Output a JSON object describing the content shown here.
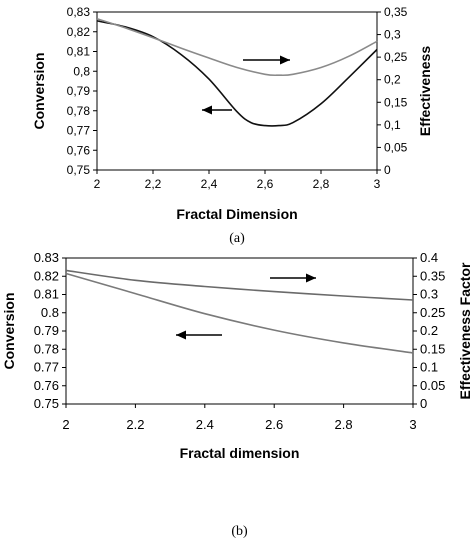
{
  "chart_data": [
    {
      "type": "line",
      "panel_label": "(a)",
      "xlabel": "Fractal Dimension",
      "ylabel": "Conversion",
      "y2label": "Effectiveness",
      "xlim": [
        2,
        3
      ],
      "ylim": [
        0.75,
        0.83
      ],
      "y2lim": [
        0,
        0.35
      ],
      "xticks": [
        "2",
        "2,2",
        "2,4",
        "2,6",
        "2,8",
        "3"
      ],
      "yticks": [
        "0,75",
        "0,76",
        "0,77",
        "0,78",
        "0,79",
        "0,8",
        "0,81",
        "0,82",
        "0,83"
      ],
      "y2ticks": [
        "0",
        "0,05",
        "0,1",
        "0,15",
        "0,2",
        "0,25",
        "0,3",
        "0,35"
      ],
      "series": [
        {
          "axis": "left",
          "color": "#111111",
          "x": [
            2.0,
            2.1,
            2.2,
            2.3,
            2.4,
            2.5,
            2.55,
            2.6,
            2.65,
            2.7,
            2.8,
            2.9,
            3.0
          ],
          "y": [
            0.8255,
            0.8225,
            0.8175,
            0.8085,
            0.796,
            0.7795,
            0.774,
            0.7725,
            0.7725,
            0.774,
            0.7835,
            0.797,
            0.811
          ]
        },
        {
          "axis": "right",
          "color": "#8a8a8a",
          "x": [
            2.0,
            2.1,
            2.2,
            2.3,
            2.4,
            2.5,
            2.6,
            2.65,
            2.7,
            2.8,
            2.9,
            3.0
          ],
          "y": [
            0.335,
            0.315,
            0.293,
            0.27,
            0.248,
            0.227,
            0.212,
            0.21,
            0.212,
            0.227,
            0.252,
            0.285
          ]
        }
      ],
      "arrows": [
        {
          "direction": "right",
          "series_axis": "right"
        },
        {
          "direction": "left",
          "series_axis": "left"
        }
      ]
    },
    {
      "type": "line",
      "panel_label": "(b)",
      "xlabel": "Fractal dimension",
      "ylabel": "Conversion",
      "y2label": "Effectiveness Factor",
      "xlim": [
        2,
        3
      ],
      "ylim": [
        0.75,
        0.83
      ],
      "y2lim": [
        0,
        0.4
      ],
      "xticks": [
        "2",
        "2.2",
        "2.4",
        "2.6",
        "2.8",
        "3"
      ],
      "yticks": [
        "0.75",
        "0.76",
        "0.77",
        "0.78",
        "0.79",
        "0.8",
        "0.81",
        "0.82",
        "0.83"
      ],
      "y2ticks": [
        "0",
        "0.05",
        "0.1",
        "0.15",
        "0.2",
        "0.25",
        "0.3",
        "0.35",
        "0.4"
      ],
      "series": [
        {
          "axis": "left",
          "color": "#7a7a7a",
          "x": [
            2.0,
            2.2,
            2.4,
            2.6,
            2.8,
            3.0
          ],
          "y": [
            0.8215,
            0.8105,
            0.7995,
            0.7905,
            0.7835,
            0.778
          ]
        },
        {
          "axis": "right",
          "color": "#6a6a6a",
          "x": [
            2.0,
            2.2,
            2.4,
            2.6,
            2.8,
            3.0
          ],
          "y": [
            0.366,
            0.339,
            0.322,
            0.308,
            0.296,
            0.285
          ]
        }
      ],
      "arrows": [
        {
          "direction": "right",
          "series_axis": "right"
        },
        {
          "direction": "left",
          "series_axis": "left"
        }
      ]
    }
  ]
}
